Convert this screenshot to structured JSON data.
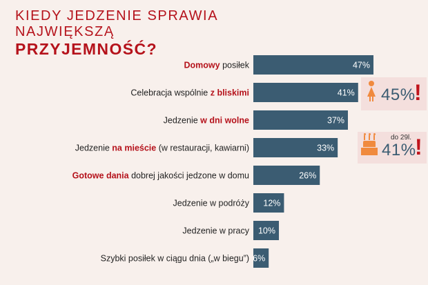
{
  "title": {
    "line1": "KIEDY JEDZENIE SPRAWIA",
    "line2": "NAJWIĘKSZĄ",
    "line3": "PRZYJEMNOŚĆ?"
  },
  "chart_data": {
    "type": "bar",
    "orientation": "horizontal",
    "title": "KIEDY JEDZENIE SPRAWIA NAJWIĘKSZĄ PRZYJEMNOŚĆ?",
    "xlim": [
      0,
      47
    ],
    "unit": "%",
    "grid": false,
    "categories": [
      "Domowy posiłek",
      "Celebracja wspólnie z bliskimi",
      "Jedzenie w dni wolne",
      "Jedzenie na mieście (w restauracji, kawiarni)",
      "Gotowe dania dobrej jakości jedzone w domu",
      "Jedzenie w podróży",
      "Jedzenie w pracy",
      "Szybki posiłek w ciągu dnia („w biegu”)"
    ],
    "category_segments": [
      [
        {
          "text": "Domowy",
          "hl": true
        },
        {
          "text": " posiłek",
          "hl": false
        }
      ],
      [
        {
          "text": "Celebracja wspólnie ",
          "hl": false
        },
        {
          "text": "z bliskimi",
          "hl": true
        }
      ],
      [
        {
          "text": "Jedzenie ",
          "hl": false
        },
        {
          "text": "w dni wolne",
          "hl": true
        }
      ],
      [
        {
          "text": "Jedzenie ",
          "hl": false
        },
        {
          "text": "na mieście",
          "hl": true
        },
        {
          "text": " (w restauracji, kawiarni)",
          "hl": false
        }
      ],
      [
        {
          "text": "Gotowe dania",
          "hl": true
        },
        {
          "text": " dobrej jakości jedzone w domu",
          "hl": false
        }
      ],
      [
        {
          "text": "Jedzenie w podróży",
          "hl": false
        }
      ],
      [
        {
          "text": "Jedzenie w pracy",
          "hl": false
        }
      ],
      [
        {
          "text": "Szybki posiłek w ciągu dnia („w biegu”)",
          "hl": false
        }
      ]
    ],
    "values": [
      47,
      41,
      37,
      33,
      26,
      12,
      10,
      6
    ],
    "value_labels": [
      "47%",
      "41%",
      "37%",
      "33%",
      "26%",
      "12%",
      "10%",
      "6%"
    ],
    "colors": {
      "bar": "#3b5c72",
      "highlight": "#b5121b",
      "accent": "#f08a3e"
    }
  },
  "callouts": [
    {
      "icon": "woman-icon",
      "value": "45%",
      "mark": "!"
    },
    {
      "icon": "birthday-cake-icon",
      "note": "do 29l.",
      "value": "41%",
      "mark": "!"
    }
  ]
}
